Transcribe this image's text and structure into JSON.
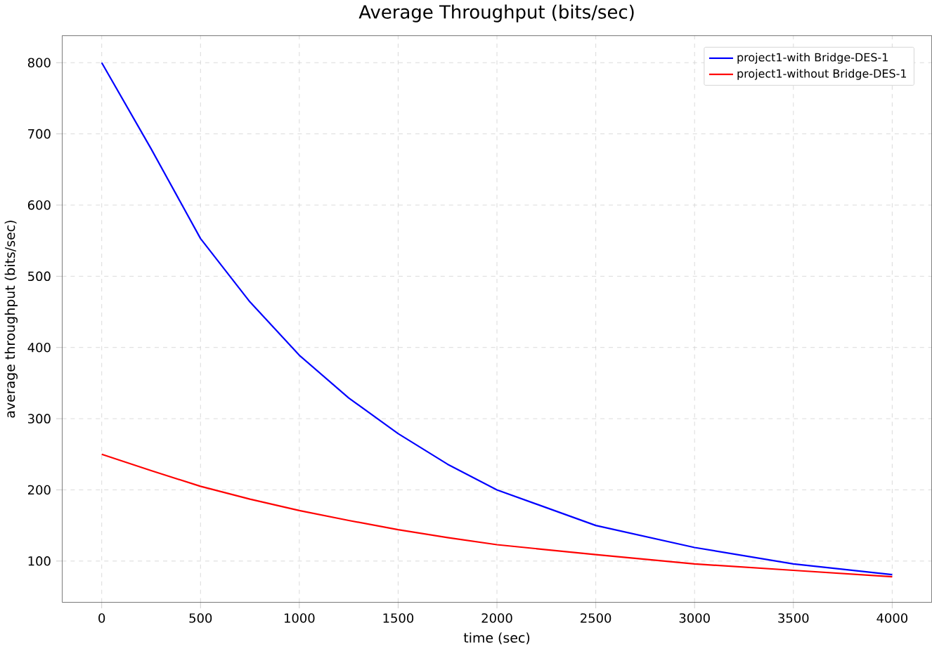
{
  "chart_data": {
    "type": "line",
    "title": "Average Throughput (bits/sec)",
    "xlabel": "time (sec)",
    "ylabel": "average throughput (bits/sec)",
    "x": [
      0,
      250,
      500,
      750,
      1000,
      1250,
      1500,
      1750,
      2000,
      2500,
      3000,
      3500,
      4000
    ],
    "series": [
      {
        "name": "project1-with Bridge-DES-1",
        "color": "#0000ff",
        "values": [
          800,
          679,
          553,
          464,
          389,
          329,
          279,
          236,
          200,
          150,
          119,
          96,
          81
        ]
      },
      {
        "name": "project1-without Bridge-DES-1",
        "color": "#ff0000",
        "values": [
          250,
          227,
          205,
          187,
          171,
          157,
          144,
          133,
          123,
          109,
          96,
          87,
          78
        ]
      }
    ],
    "xlim": [
      -200,
      4200
    ],
    "ylim": [
      42,
      838
    ],
    "xticks": [
      0,
      500,
      1000,
      1500,
      2000,
      2500,
      3000,
      3500,
      4000
    ],
    "yticks": [
      100,
      200,
      300,
      400,
      500,
      600,
      700,
      800
    ],
    "grid": true,
    "legend": "top right",
    "marker": "none",
    "line_style": "solid"
  }
}
